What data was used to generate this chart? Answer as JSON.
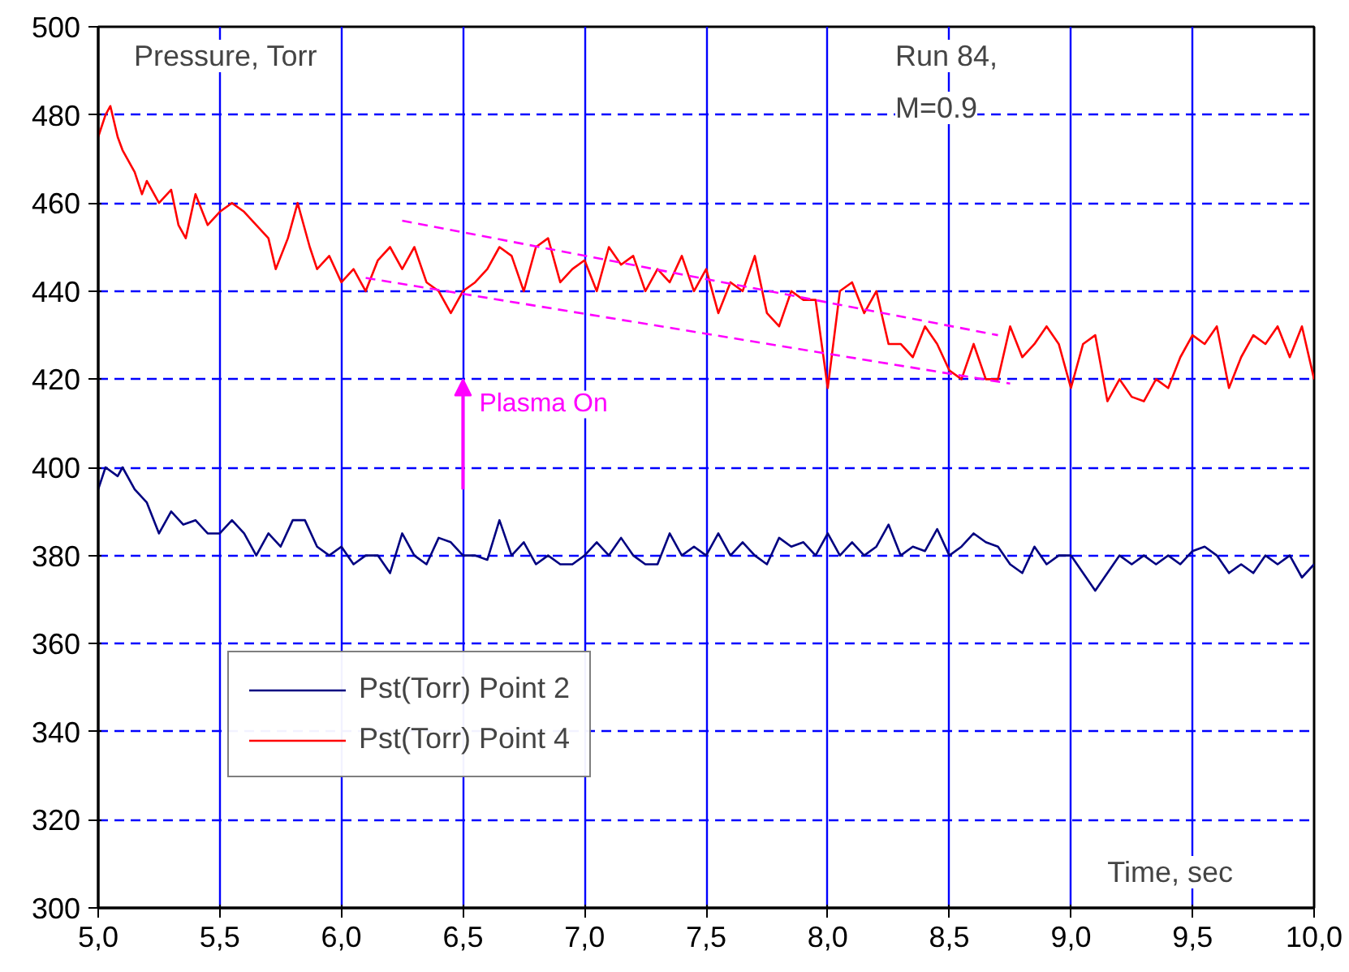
{
  "chart_data": {
    "type": "line",
    "xlabel": "Time, sec",
    "ylabel": "Pressure, Torr",
    "annotations": [
      "Run 84,\nM=0.9",
      "Plasma On"
    ],
    "xlim": [
      5.0,
      10.0
    ],
    "ylim": [
      300,
      500
    ],
    "xticks": [
      {
        "value": 5.0,
        "label": "5,0"
      },
      {
        "value": 5.5,
        "label": "5,5"
      },
      {
        "value": 6.0,
        "label": "6,0"
      },
      {
        "value": 6.5,
        "label": "6,5"
      },
      {
        "value": 7.0,
        "label": "7,0"
      },
      {
        "value": 7.5,
        "label": "7,5"
      },
      {
        "value": 8.0,
        "label": "8,0"
      },
      {
        "value": 8.5,
        "label": "8,5"
      },
      {
        "value": 9.0,
        "label": "9,0"
      },
      {
        "value": 9.5,
        "label": "9,5"
      },
      {
        "value": 10.0,
        "label": "10,0"
      }
    ],
    "yticks": [
      300,
      320,
      340,
      360,
      380,
      400,
      420,
      440,
      460,
      480,
      500
    ],
    "grid": true,
    "legend": "bottom left",
    "marker": "none",
    "series": [
      {
        "name": "Pst(Torr) Point 2",
        "color": "#000080",
        "x": [
          5.0,
          5.03,
          5.08,
          5.1,
          5.15,
          5.2,
          5.25,
          5.3,
          5.35,
          5.4,
          5.45,
          5.5,
          5.55,
          5.6,
          5.65,
          5.7,
          5.75,
          5.8,
          5.85,
          5.9,
          5.95,
          6.0,
          6.05,
          6.1,
          6.15,
          6.2,
          6.25,
          6.3,
          6.35,
          6.4,
          6.45,
          6.5,
          6.55,
          6.6,
          6.65,
          6.7,
          6.75,
          6.8,
          6.85,
          6.9,
          6.95,
          7.0,
          7.05,
          7.1,
          7.15,
          7.2,
          7.25,
          7.3,
          7.35,
          7.4,
          7.45,
          7.5,
          7.55,
          7.6,
          7.65,
          7.7,
          7.75,
          7.8,
          7.85,
          7.9,
          7.95,
          8.0,
          8.05,
          8.1,
          8.15,
          8.2,
          8.25,
          8.3,
          8.35,
          8.4,
          8.45,
          8.5,
          8.55,
          8.6,
          8.65,
          8.7,
          8.75,
          8.8,
          8.85,
          8.9,
          8.95,
          9.0,
          9.05,
          9.1,
          9.15,
          9.2,
          9.25,
          9.3,
          9.35,
          9.4,
          9.45,
          9.5,
          9.55,
          9.6,
          9.65,
          9.7,
          9.75,
          9.8,
          9.85,
          9.9,
          9.95,
          10.0
        ],
        "values": [
          395,
          400,
          398,
          400,
          395,
          392,
          385,
          390,
          387,
          388,
          385,
          385,
          388,
          385,
          380,
          385,
          382,
          388,
          388,
          382,
          380,
          382,
          378,
          380,
          380,
          376,
          385,
          380,
          378,
          384,
          383,
          380,
          380,
          379,
          388,
          380,
          383,
          378,
          380,
          378,
          378,
          380,
          383,
          380,
          384,
          380,
          378,
          378,
          385,
          380,
          382,
          380,
          385,
          380,
          383,
          380,
          378,
          384,
          382,
          383,
          380,
          385,
          380,
          383,
          380,
          382,
          387,
          380,
          382,
          381,
          386,
          380,
          382,
          385,
          383,
          382,
          378,
          376,
          382,
          378,
          380,
          380,
          376,
          372,
          376,
          380,
          378,
          380,
          378,
          380,
          378,
          381,
          382,
          380,
          376,
          378,
          376,
          380,
          378,
          380,
          375,
          378
        ]
      },
      {
        "name": "Pst(Torr) Point 4",
        "color": "#ff0000",
        "x": [
          5.0,
          5.03,
          5.05,
          5.08,
          5.1,
          5.15,
          5.18,
          5.2,
          5.25,
          5.3,
          5.33,
          5.36,
          5.4,
          5.45,
          5.5,
          5.55,
          5.6,
          5.65,
          5.7,
          5.73,
          5.78,
          5.82,
          5.87,
          5.9,
          5.95,
          6.0,
          6.05,
          6.1,
          6.15,
          6.2,
          6.25,
          6.3,
          6.35,
          6.4,
          6.45,
          6.5,
          6.55,
          6.6,
          6.65,
          6.7,
          6.75,
          6.8,
          6.85,
          6.9,
          6.95,
          7.0,
          7.05,
          7.1,
          7.15,
          7.2,
          7.25,
          7.3,
          7.35,
          7.4,
          7.45,
          7.5,
          7.55,
          7.6,
          7.65,
          7.7,
          7.75,
          7.8,
          7.85,
          7.9,
          7.95,
          8.0,
          8.05,
          8.1,
          8.15,
          8.2,
          8.25,
          8.3,
          8.35,
          8.4,
          8.45,
          8.5,
          8.55,
          8.6,
          8.65,
          8.7,
          8.75,
          8.8,
          8.85,
          8.9,
          8.95,
          9.0,
          9.05,
          9.1,
          9.15,
          9.2,
          9.25,
          9.3,
          9.35,
          9.4,
          9.45,
          9.5,
          9.55,
          9.6,
          9.65,
          9.7,
          9.75,
          9.8,
          9.85,
          9.9,
          9.95,
          10.0
        ],
        "values": [
          475,
          480,
          482,
          475,
          472,
          467,
          462,
          465,
          460,
          463,
          455,
          452,
          462,
          455,
          458,
          460,
          458,
          455,
          452,
          445,
          452,
          460,
          450,
          445,
          448,
          442,
          445,
          440,
          447,
          450,
          445,
          450,
          442,
          440,
          435,
          440,
          442,
          445,
          450,
          448,
          440,
          450,
          452,
          442,
          445,
          447,
          440,
          450,
          446,
          448,
          440,
          445,
          442,
          448,
          440,
          445,
          435,
          442,
          440,
          448,
          435,
          432,
          440,
          438,
          438,
          418,
          440,
          442,
          435,
          440,
          428,
          428,
          425,
          432,
          428,
          422,
          420,
          428,
          420,
          420,
          432,
          425,
          428,
          432,
          428,
          418,
          428,
          430,
          415,
          420,
          416,
          415,
          420,
          418,
          425,
          430,
          428,
          432,
          418,
          425,
          430,
          428,
          432,
          425,
          432,
          420
        ]
      },
      {
        "type": "line",
        "color": "#ff00ff",
        "line_style": "dashed",
        "x": [
          6.25,
          8.7
        ],
        "values": [
          456,
          430
        ]
      },
      {
        "type": "line",
        "color": "#ff00ff",
        "line_style": "dashed",
        "x": [
          6.1,
          8.75
        ],
        "values": [
          443,
          419
        ]
      }
    ]
  }
}
